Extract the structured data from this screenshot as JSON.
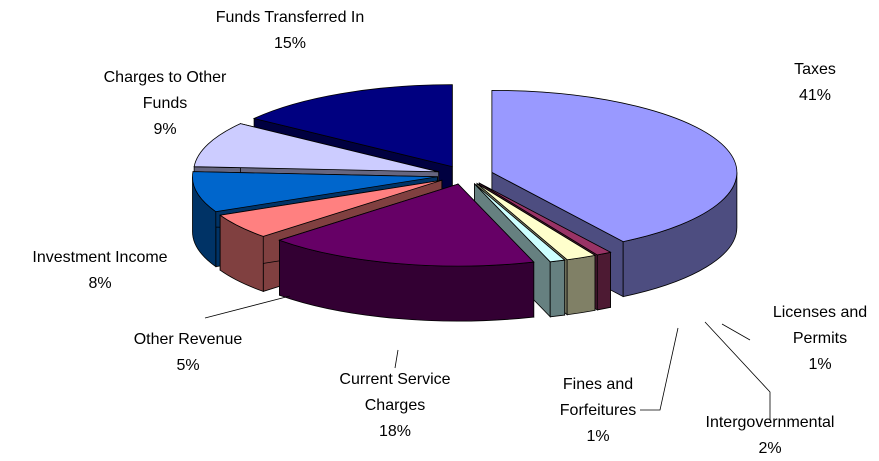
{
  "chart_data": {
    "type": "pie3d",
    "categories": [
      "Taxes",
      "Licenses and Permits",
      "Intergovernmental",
      "Fines and Forfeitures",
      "Current Service Charges",
      "Other Revenue",
      "Investment Income",
      "Charges to Other Funds",
      "Funds Transferred In"
    ],
    "values": [
      41,
      1,
      2,
      1,
      18,
      5,
      8,
      9,
      15
    ],
    "value_labels": [
      "41%",
      "1%",
      "2%",
      "1%",
      "18%",
      "5%",
      "8%",
      "9%",
      "15%"
    ],
    "colors": [
      "#9999ff",
      "#993366",
      "#ffffcc",
      "#ccffff",
      "#660066",
      "#ff8080",
      "#0066cc",
      "#ccccff",
      "#000080"
    ]
  }
}
